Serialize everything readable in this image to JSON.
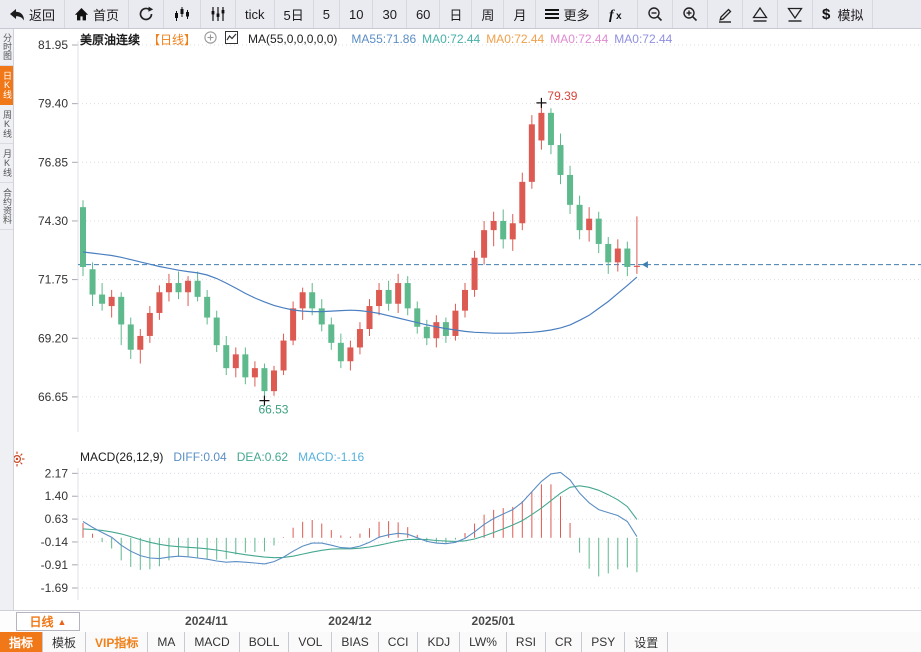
{
  "toolbar": {
    "items": [
      {
        "name": "back-button",
        "icon": "back-arrow-icon",
        "label": "返回"
      },
      {
        "name": "home-button",
        "icon": "home-icon",
        "label": "首页"
      },
      {
        "name": "refresh-button",
        "icon": "refresh-icon",
        "label": ""
      },
      {
        "name": "kline-view-button",
        "icon": "kline-icon",
        "label": ""
      },
      {
        "name": "volume-view-button",
        "icon": "volume-bars-icon",
        "label": ""
      },
      {
        "name": "period-tick-button",
        "icon": "",
        "label": "tick"
      },
      {
        "name": "period-5day-button",
        "icon": "",
        "label": "5日"
      },
      {
        "name": "period-5min-button",
        "icon": "",
        "label": "5"
      },
      {
        "name": "period-10min-button",
        "icon": "",
        "label": "10"
      },
      {
        "name": "period-30min-button",
        "icon": "",
        "label": "30"
      },
      {
        "name": "period-60min-button",
        "icon": "",
        "label": "60"
      },
      {
        "name": "period-day-button",
        "icon": "",
        "label": "日"
      },
      {
        "name": "period-week-button",
        "icon": "",
        "label": "周"
      },
      {
        "name": "period-month-button",
        "icon": "",
        "label": "月"
      },
      {
        "name": "more-button",
        "icon": "menu-icon",
        "label": "更多"
      },
      {
        "name": "formula-button",
        "icon": "fx-icon",
        "label": ""
      },
      {
        "name": "zoom-out-button",
        "icon": "zoom-out-icon",
        "label": ""
      },
      {
        "name": "zoom-in-button",
        "icon": "zoom-in-icon",
        "label": ""
      },
      {
        "name": "draw-button",
        "icon": "pen-icon",
        "label": ""
      },
      {
        "name": "flag-up-button",
        "icon": "triangle-up-icon",
        "label": ""
      },
      {
        "name": "flag-down-button",
        "icon": "triangle-down-icon",
        "label": ""
      },
      {
        "name": "simulate-button",
        "icon": "dollar-icon",
        "label": "模拟"
      }
    ]
  },
  "sidebar": {
    "items": [
      {
        "name": "sidebar-item-time-chart",
        "label": "分时图",
        "active": false
      },
      {
        "name": "sidebar-item-daily-k",
        "label": "日K线",
        "active": true
      },
      {
        "name": "sidebar-item-weekly-k",
        "label": "周K线",
        "active": false
      },
      {
        "name": "sidebar-item-monthly-k",
        "label": "月K线",
        "active": false
      },
      {
        "name": "sidebar-item-contract-info",
        "label": "合约资料",
        "active": false
      }
    ]
  },
  "kline_header": {
    "title": "美原油连续",
    "period_tag": "【日线】",
    "add_icon": "plus-circle-icon",
    "indicator_icon": "mini-chart-icon",
    "indicator_label": "MA(55,0,0,0,0,0)",
    "ma_values": [
      {
        "text": "MA55:71.86",
        "color": "#5b8ec4"
      },
      {
        "text": "MA0:72.44",
        "color": "#45b0a8"
      },
      {
        "text": "MA0:72.44",
        "color": "#f0a04b"
      },
      {
        "text": "MA0:72.44",
        "color": "#e08ad0"
      },
      {
        "text": "MA0:72.44",
        "color": "#8f8fe0"
      }
    ]
  },
  "macd_header": {
    "title": "MACD(26,12,9)",
    "values": [
      {
        "text": "DIFF:0.04",
        "color": "#5b8ec4"
      },
      {
        "text": "DEA:0.62",
        "color": "#45a890"
      },
      {
        "text": "MACD:-1.16",
        "color": "#57b1dc"
      }
    ]
  },
  "xaxis": {
    "period_button_label": "日线",
    "period_button_arrow": "▲"
  },
  "bottom_tabs": [
    {
      "name": "tab-indicator",
      "label": "指标",
      "style": "active"
    },
    {
      "name": "tab-template",
      "label": "模板",
      "style": "normal"
    },
    {
      "name": "tab-vip-indicator",
      "label": "VIP指标",
      "style": "vip"
    },
    {
      "name": "tab-ma",
      "label": "MA",
      "style": "normal"
    },
    {
      "name": "tab-macd",
      "label": "MACD",
      "style": "normal"
    },
    {
      "name": "tab-boll",
      "label": "BOLL",
      "style": "normal"
    },
    {
      "name": "tab-vol",
      "label": "VOL",
      "style": "normal"
    },
    {
      "name": "tab-bias",
      "label": "BIAS",
      "style": "normal"
    },
    {
      "name": "tab-cci",
      "label": "CCI",
      "style": "normal"
    },
    {
      "name": "tab-kdj",
      "label": "KDJ",
      "style": "normal"
    },
    {
      "name": "tab-lwr",
      "label": "LW%",
      "style": "normal"
    },
    {
      "name": "tab-rsi",
      "label": "RSI",
      "style": "normal"
    },
    {
      "name": "tab-cr",
      "label": "CR",
      "style": "normal"
    },
    {
      "name": "tab-psy",
      "label": "PSY",
      "style": "normal"
    },
    {
      "name": "tab-settings",
      "label": "设置",
      "style": "normal"
    }
  ],
  "chart_data": {
    "type": "candlestick",
    "instrument": "美原油连续",
    "period": "日线",
    "colors": {
      "up": "#dd5a52",
      "down": "#5eb98c",
      "ma55": "#4a7fc0",
      "diff": "#5b8ec4",
      "dea": "#45a890",
      "last_price_line": "#3f7faf",
      "annotation_high": "#d9453c",
      "annotation_low": "#3aa080"
    },
    "kline": {
      "y_ticks": [
        81.95,
        79.4,
        76.85,
        74.3,
        71.75,
        69.2,
        66.65
      ],
      "last_price_line": 72.4,
      "high_annotation": {
        "label": "79.39",
        "value": 79.39,
        "candle_index": 48
      },
      "low_annotation": {
        "label": "66.53",
        "value": 66.53,
        "candle_index": 19
      },
      "month_ticks": [
        {
          "label": "2024/11",
          "candle_index": 11
        },
        {
          "label": "2024/12",
          "candle_index": 26
        },
        {
          "label": "2025/01",
          "candle_index": 41
        }
      ],
      "candles": [
        [
          74.9,
          75.2,
          71.9,
          72.3
        ],
        [
          72.2,
          72.5,
          70.6,
          71.1
        ],
        [
          71.1,
          71.6,
          70.4,
          70.7
        ],
        [
          70.6,
          71.3,
          70.1,
          71.0
        ],
        [
          71.0,
          71.2,
          68.9,
          69.8
        ],
        [
          69.8,
          70.1,
          68.3,
          68.7
        ],
        [
          68.7,
          69.6,
          68.1,
          69.3
        ],
        [
          69.3,
          70.6,
          69.0,
          70.3
        ],
        [
          70.3,
          71.5,
          70.0,
          71.2
        ],
        [
          71.2,
          72.0,
          70.8,
          71.6
        ],
        [
          71.6,
          72.1,
          70.9,
          71.2
        ],
        [
          71.2,
          71.9,
          70.6,
          71.7
        ],
        [
          71.7,
          72.1,
          70.8,
          71.0
        ],
        [
          71.0,
          71.3,
          69.8,
          70.1
        ],
        [
          70.1,
          70.4,
          68.6,
          68.9
        ],
        [
          68.9,
          69.3,
          67.6,
          67.9
        ],
        [
          67.9,
          68.8,
          67.5,
          68.5
        ],
        [
          68.5,
          68.8,
          67.2,
          67.5
        ],
        [
          67.5,
          68.2,
          67.1,
          67.9
        ],
        [
          67.9,
          68.1,
          66.53,
          66.9
        ],
        [
          66.9,
          68.0,
          66.7,
          67.8
        ],
        [
          67.8,
          69.4,
          67.6,
          69.1
        ],
        [
          69.1,
          70.8,
          68.9,
          70.5
        ],
        [
          70.5,
          71.4,
          70.0,
          71.2
        ],
        [
          71.2,
          71.6,
          70.2,
          70.5
        ],
        [
          70.5,
          70.9,
          69.5,
          69.8
        ],
        [
          69.8,
          70.1,
          68.7,
          69.0
        ],
        [
          69.0,
          69.4,
          67.9,
          68.2
        ],
        [
          68.2,
          69.1,
          67.8,
          68.8
        ],
        [
          68.8,
          69.9,
          68.5,
          69.6
        ],
        [
          69.6,
          70.9,
          69.3,
          70.6
        ],
        [
          70.6,
          71.6,
          70.2,
          71.3
        ],
        [
          71.3,
          71.7,
          70.4,
          70.7
        ],
        [
          70.7,
          72.0,
          70.3,
          71.6
        ],
        [
          71.6,
          71.9,
          70.2,
          70.5
        ],
        [
          70.5,
          70.8,
          69.4,
          69.7
        ],
        [
          69.7,
          70.0,
          68.9,
          69.2
        ],
        [
          69.2,
          70.2,
          68.8,
          69.9
        ],
        [
          69.9,
          70.1,
          69.0,
          69.3
        ],
        [
          69.3,
          70.7,
          69.1,
          70.4
        ],
        [
          70.4,
          71.6,
          70.1,
          71.3
        ],
        [
          71.3,
          73.0,
          71.0,
          72.7
        ],
        [
          72.7,
          74.3,
          72.4,
          73.9
        ],
        [
          73.9,
          74.7,
          73.2,
          74.3
        ],
        [
          74.3,
          74.8,
          73.1,
          73.5
        ],
        [
          73.5,
          74.6,
          73.0,
          74.2
        ],
        [
          74.2,
          76.4,
          73.9,
          76.0
        ],
        [
          76.0,
          78.9,
          75.7,
          78.5
        ],
        [
          77.8,
          79.39,
          77.4,
          79.0
        ],
        [
          79.0,
          79.2,
          77.2,
          77.6
        ],
        [
          77.6,
          78.1,
          75.9,
          76.3
        ],
        [
          76.3,
          76.7,
          74.6,
          75.0
        ],
        [
          75.0,
          75.4,
          73.5,
          73.9
        ],
        [
          73.9,
          74.9,
          73.4,
          74.4
        ],
        [
          74.4,
          74.7,
          72.9,
          73.3
        ],
        [
          73.3,
          73.6,
          72.0,
          72.5
        ],
        [
          72.5,
          73.5,
          72.1,
          73.1
        ],
        [
          73.1,
          73.4,
          71.9,
          72.3
        ],
        [
          72.3,
          74.5,
          72.0,
          72.35
        ]
      ],
      "ma55": [
        72.95,
        72.9,
        72.85,
        72.8,
        72.72,
        72.62,
        72.52,
        72.42,
        72.32,
        72.24,
        72.16,
        72.1,
        72.04,
        71.95,
        71.8,
        71.6,
        71.38,
        71.15,
        70.95,
        70.78,
        70.63,
        70.52,
        70.43,
        70.38,
        70.36,
        70.36,
        70.38,
        70.4,
        70.42,
        70.4,
        70.35,
        70.28,
        70.18,
        70.08,
        69.98,
        69.88,
        69.78,
        69.7,
        69.62,
        69.56,
        69.5,
        69.46,
        69.44,
        69.42,
        69.42,
        69.42,
        69.44,
        69.46,
        69.5,
        69.56,
        69.65,
        69.78,
        69.98,
        70.2,
        70.5,
        70.8,
        71.15,
        71.5,
        71.86
      ]
    },
    "macd": {
      "parameters": "26,12,9",
      "y_ticks": [
        2.17,
        1.4,
        0.63,
        -0.14,
        -0.91,
        -1.69
      ],
      "diff": [
        0.55,
        0.35,
        0.18,
        0.02,
        -0.25,
        -0.45,
        -0.6,
        -0.68,
        -0.7,
        -0.65,
        -0.62,
        -0.64,
        -0.68,
        -0.72,
        -0.78,
        -0.82,
        -0.8,
        -0.82,
        -0.85,
        -0.88,
        -0.8,
        -0.65,
        -0.45,
        -0.28,
        -0.18,
        -0.18,
        -0.25,
        -0.33,
        -0.35,
        -0.28,
        -0.15,
        0.02,
        0.1,
        0.15,
        0.12,
        0.0,
        -0.12,
        -0.18,
        -0.2,
        -0.15,
        -0.02,
        0.2,
        0.45,
        0.65,
        0.8,
        0.95,
        1.2,
        1.55,
        1.9,
        2.15,
        2.2,
        1.95,
        1.5,
        1.18,
        0.95,
        0.85,
        0.75,
        0.55,
        0.04
      ],
      "dea": [
        0.3,
        0.28,
        0.25,
        0.2,
        0.13,
        0.04,
        -0.06,
        -0.15,
        -0.22,
        -0.27,
        -0.3,
        -0.32,
        -0.34,
        -0.37,
        -0.41,
        -0.46,
        -0.52,
        -0.57,
        -0.61,
        -0.65,
        -0.67,
        -0.66,
        -0.62,
        -0.55,
        -0.48,
        -0.42,
        -0.38,
        -0.37,
        -0.37,
        -0.35,
        -0.31,
        -0.25,
        -0.18,
        -0.11,
        -0.06,
        -0.05,
        -0.06,
        -0.09,
        -0.11,
        -0.12,
        -0.1,
        -0.04,
        0.06,
        0.18,
        0.3,
        0.43,
        0.58,
        0.78,
        1.0,
        1.25,
        1.5,
        1.7,
        1.75,
        1.7,
        1.6,
        1.45,
        1.28,
        1.05,
        0.62
      ],
      "histogram_rule": "2*(diff-dea)"
    }
  }
}
